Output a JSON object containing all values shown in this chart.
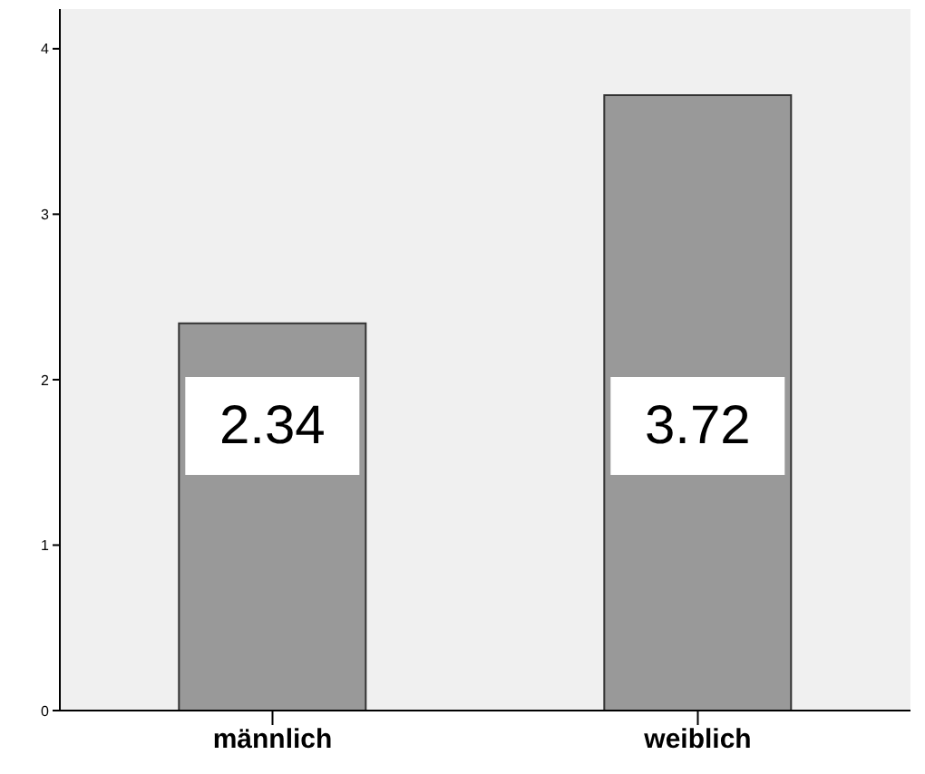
{
  "chart_data": {
    "type": "bar",
    "categories": [
      "männlich",
      "weiblich"
    ],
    "values": [
      2.34,
      3.72
    ],
    "color": "#999999",
    "ylim": [
      0,
      4.24
    ],
    "yticks": [
      0,
      1,
      2,
      3,
      4
    ],
    "data_labels": true
  }
}
